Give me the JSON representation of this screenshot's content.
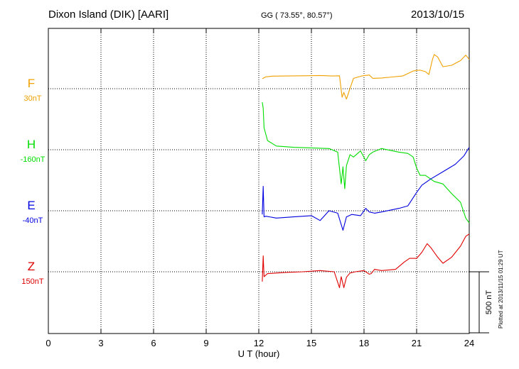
{
  "header": {
    "station": "Dixon Island (DIK)  [AARI]",
    "coords": "GG ( 73.55°,  80.57°)",
    "date": "2013/10/15"
  },
  "footer": {
    "plotted": "Plotted at 2013/11/15 01:29 UT"
  },
  "colors": {
    "F": "#f0a000",
    "H": "#00dd00",
    "E": "#0000e0",
    "Z": "#e00000",
    "axis": "#000000"
  },
  "chart_data": {
    "type": "line",
    "title": "Dixon Island (DIK)  [AARI]",
    "xlabel": "U T (hour)",
    "xlim": [
      0,
      24
    ],
    "xticks": [
      0,
      3,
      6,
      9,
      12,
      15,
      18,
      21,
      24
    ],
    "grid": true,
    "scale_bar": {
      "label": "500 nT",
      "value_nT": 500
    },
    "series": [
      {
        "name": "F",
        "baseline_label": "30nT",
        "baseline_nT": 30,
        "color": "#f0a000",
        "x": [
          12.2,
          12.4,
          12.8,
          13.5,
          14.5,
          15.5,
          16.2,
          16.6,
          16.75,
          16.85,
          17.0,
          17.15,
          17.4,
          17.9,
          18.3,
          18.5,
          19.0,
          19.6,
          20.2,
          20.8,
          21.0,
          21.2,
          21.5,
          21.7,
          21.9,
          22.0,
          22.2,
          22.5,
          23.0,
          23.5,
          23.8,
          24.0
        ],
        "values": [
          82,
          97,
          103,
          104,
          106,
          108,
          104,
          106,
          -70,
          -30,
          -85,
          -20,
          85,
          105,
          112,
          85,
          88,
          96,
          104,
          145,
          150,
          152,
          140,
          116,
          238,
          280,
          260,
          180,
          192,
          230,
          275,
          240
        ]
      },
      {
        "name": "H",
        "baseline_label": "-160nT",
        "baseline_nT": -160,
        "color": "#00dd00",
        "x": [
          12.2,
          12.25,
          12.3,
          12.5,
          13.0,
          14.0,
          15.0,
          16.0,
          16.5,
          16.7,
          16.8,
          16.9,
          17.0,
          17.2,
          17.4,
          17.8,
          18.1,
          18.3,
          18.5,
          19.0,
          20.0,
          20.5,
          20.8,
          21.0,
          21.2,
          21.5,
          22.0,
          22.5,
          23.0,
          23.5,
          23.8,
          24.0
        ],
        "values": [
          390,
          340,
          180,
          75,
          30,
          20,
          15,
          10,
          -20,
          -280,
          -140,
          -320,
          -130,
          -40,
          -60,
          -10,
          -90,
          -40,
          -20,
          10,
          -20,
          -30,
          -60,
          -150,
          -210,
          -210,
          -260,
          -280,
          -360,
          -430,
          -560,
          -600
        ]
      },
      {
        "name": "E",
        "baseline_label": "-40nT",
        "baseline_nT": -40,
        "color": "#0000e0",
        "x": [
          12.2,
          12.25,
          12.3,
          12.4,
          13.0,
          14.0,
          15.0,
          15.5,
          16.0,
          16.5,
          16.8,
          17.0,
          17.3,
          17.8,
          18.1,
          18.3,
          18.6,
          19.0,
          20.0,
          20.5,
          21.0,
          21.3,
          21.8,
          22.5,
          23.2,
          23.7,
          24.0
        ],
        "values": [
          -30,
          200,
          -50,
          -45,
          -60,
          -50,
          -40,
          -80,
          0,
          -20,
          -160,
          -50,
          -30,
          -40,
          20,
          -10,
          -20,
          -10,
          20,
          40,
          150,
          210,
          260,
          320,
          380,
          450,
          520
        ]
      },
      {
        "name": "Z",
        "baseline_label": "150nT",
        "baseline_nT": 150,
        "color": "#e00000",
        "x": [
          12.2,
          12.25,
          12.3,
          12.5,
          13.5,
          14.5,
          15.5,
          16.3,
          16.6,
          16.7,
          16.85,
          17.0,
          17.2,
          17.5,
          18.0,
          18.3,
          18.4,
          18.6,
          19.0,
          19.8,
          20.3,
          20.6,
          21.0,
          21.3,
          21.6,
          21.8,
          22.2,
          22.5,
          23.0,
          23.5,
          23.8,
          24.0
        ],
        "values": [
          -80,
          130,
          -40,
          -15,
          -5,
          0,
          10,
          0,
          -130,
          -40,
          -130,
          -45,
          -10,
          0,
          10,
          -20,
          -15,
          20,
          10,
          20,
          80,
          110,
          110,
          160,
          230,
          200,
          120,
          70,
          120,
          210,
          290,
          310
        ]
      }
    ]
  }
}
